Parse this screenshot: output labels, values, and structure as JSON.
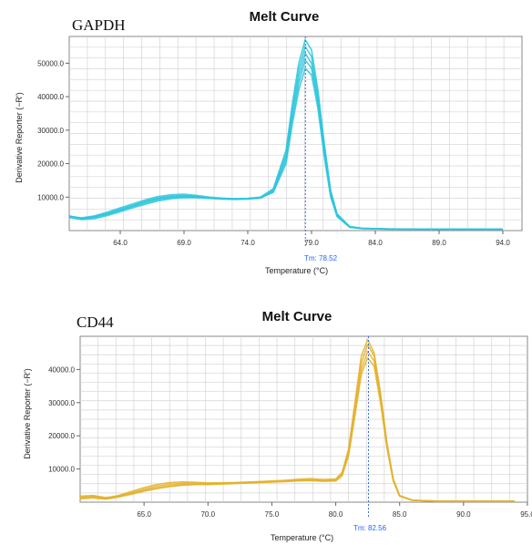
{
  "chart_data": [
    {
      "type": "line",
      "label": "GAPDH",
      "title": "Melt Curve",
      "xlabel": "Temperature (°C)",
      "ylabel": "Derivative Reporter (−R')",
      "xlim": [
        60.0,
        95.5
      ],
      "ylim": [
        0,
        58000
      ],
      "xticks": [
        64.0,
        69.0,
        74.0,
        79.0,
        84.0,
        89.0,
        94.0
      ],
      "xtick_labels": [
        "64.0",
        "69.0",
        "74.0",
        "79.0",
        "84.0",
        "89.0",
        "94.0"
      ],
      "yticks": [
        10000,
        20000,
        30000,
        40000,
        50000
      ],
      "ytick_labels": [
        "10000.0",
        "20000.0",
        "30000.0",
        "40000.0",
        "50000.0"
      ],
      "grid": true,
      "tm": 78.52,
      "tm_label": "Tm: 78.52",
      "series_color": "#2ec6dc",
      "tm_line_color": "#3b6fe0",
      "x": [
        60,
        61,
        62,
        63,
        64,
        65,
        66,
        67,
        68,
        69,
        70,
        71,
        72,
        73,
        74,
        75,
        76,
        77,
        77.5,
        78,
        78.5,
        79,
        79.5,
        80,
        80.5,
        81,
        82,
        83,
        85,
        88,
        91,
        94
      ],
      "series": [
        {
          "values": [
            4200,
            3800,
            4400,
            5500,
            6800,
            8000,
            9200,
            10200,
            10700,
            10900,
            10500,
            10000,
            9700,
            9500,
            9600,
            10000,
            12500,
            24000,
            38000,
            50000,
            57000,
            54000,
            42000,
            26000,
            12000,
            5000,
            1200,
            700,
            500,
            400,
            400,
            400
          ]
        },
        {
          "values": [
            4000,
            3600,
            4200,
            5200,
            6400,
            7600,
            8800,
            9800,
            10300,
            10500,
            10200,
            9800,
            9500,
            9400,
            9500,
            9900,
            12200,
            23000,
            36500,
            48000,
            55000,
            52000,
            40500,
            25000,
            11500,
            4800,
            1100,
            650,
            480,
            400,
            400,
            400
          ]
        },
        {
          "values": [
            4400,
            3500,
            3900,
            4800,
            6000,
            7200,
            8300,
            9300,
            9900,
            10100,
            10000,
            9700,
            9500,
            9400,
            9500,
            9800,
            11900,
            22000,
            35000,
            46000,
            53000,
            50000,
            39000,
            24000,
            11000,
            4600,
            1050,
            620,
            460,
            400,
            400,
            400
          ]
        },
        {
          "values": [
            3900,
            3300,
            3600,
            4500,
            5600,
            6800,
            7900,
            8900,
            9500,
            9800,
            9800,
            9600,
            9400,
            9300,
            9400,
            9700,
            11600,
            21000,
            33500,
            44000,
            51000,
            48500,
            38000,
            23000,
            10500,
            4400,
            1000,
            600,
            450,
            400,
            400,
            400
          ]
        },
        {
          "values": [
            4300,
            3700,
            4100,
            5000,
            6200,
            7400,
            8600,
            9600,
            10100,
            10300,
            10100,
            9800,
            9600,
            9500,
            9600,
            9900,
            11400,
            20000,
            32000,
            42000,
            48500,
            46500,
            36500,
            22000,
            10000,
            4200,
            950,
            580,
            440,
            400,
            400,
            400
          ]
        }
      ]
    },
    {
      "type": "line",
      "label": "CD44",
      "title": "Melt Curve",
      "xlabel": "Temperature (°C)",
      "ylabel": "Derivative Reporter (−R')",
      "xlim": [
        60.0,
        95.0
      ],
      "ylim": [
        0,
        50000
      ],
      "xticks": [
        65.0,
        70.0,
        75.0,
        80.0,
        85.0,
        90.0,
        95.0
      ],
      "xtick_labels": [
        "65.0",
        "70.0",
        "75.0",
        "80.0",
        "85.0",
        "90.0",
        "95.0"
      ],
      "yticks": [
        10000,
        20000,
        30000,
        40000
      ],
      "ytick_labels": [
        "10000.0",
        "20000.0",
        "30000.0",
        "40000.0"
      ],
      "grid": true,
      "tm": 82.56,
      "tm_label": "Tm: 82.56",
      "series_color": "#e3b22c",
      "tm_line_color": "#3b6fe0",
      "x": [
        60,
        61,
        62,
        63,
        64,
        65,
        66,
        67,
        68,
        69,
        70,
        72,
        74,
        76,
        77,
        78,
        79,
        80,
        80.5,
        81,
        81.5,
        82,
        82.5,
        83,
        83.5,
        84,
        84.5,
        85,
        86,
        88,
        91,
        94
      ],
      "series": [
        {
          "values": [
            1500,
            1800,
            1200,
            2000,
            3200,
            4400,
            5300,
            5900,
            6100,
            6000,
            5800,
            5900,
            6200,
            6600,
            6900,
            7100,
            6800,
            7000,
            9000,
            16000,
            30000,
            44000,
            49000,
            45000,
            33000,
            18000,
            7000,
            2000,
            600,
            300,
            300,
            300
          ]
        },
        {
          "values": [
            1200,
            1500,
            1000,
            1700,
            2800,
            3900,
            4800,
            5400,
            5700,
            5700,
            5600,
            5800,
            6100,
            6400,
            6600,
            6800,
            6500,
            6700,
            8500,
            15000,
            28500,
            42000,
            47500,
            44000,
            32000,
            17500,
            6800,
            1900,
            580,
            300,
            300,
            300
          ]
        },
        {
          "values": [
            1800,
            2000,
            1400,
            1900,
            2600,
            3500,
            4300,
            4900,
            5300,
            5400,
            5400,
            5700,
            6000,
            6300,
            6500,
            6600,
            6400,
            6500,
            8200,
            14500,
            27000,
            40000,
            45500,
            42500,
            31000,
            17000,
            6600,
            1850,
            560,
            300,
            300,
            300
          ]
        },
        {
          "values": [
            1000,
            1300,
            900,
            1500,
            2400,
            3300,
            4100,
            4700,
            5100,
            5300,
            5300,
            5600,
            5900,
            6200,
            6400,
            6500,
            6300,
            6400,
            8000,
            14000,
            26000,
            38500,
            43500,
            41000,
            30000,
            16500,
            6400,
            1800,
            540,
            300,
            300,
            300
          ]
        }
      ]
    }
  ]
}
